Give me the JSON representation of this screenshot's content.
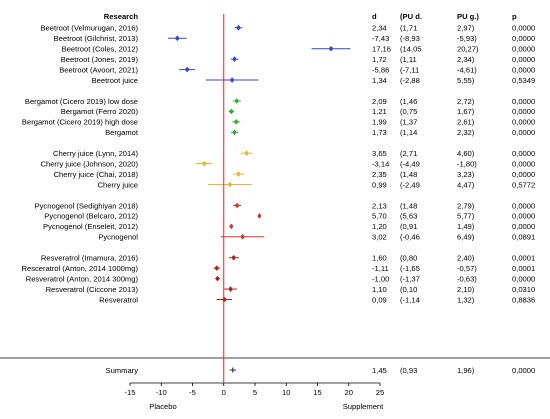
{
  "chart_data": {
    "type": "forest",
    "columns": {
      "study": "Research",
      "d": "d",
      "ci_low": "(PU d.",
      "ci_high": "PU g.)",
      "p": "p"
    },
    "xlim": [
      -15,
      25
    ],
    "xticks": [
      "-15",
      "-10",
      "-5",
      "0",
      "5",
      "10",
      "15",
      "20",
      "25"
    ],
    "left_label": "Placebo",
    "right_label": "Supplement",
    "rows": [
      {
        "label": "Beetroot (Velmurugan, 2016)",
        "d": "2,34",
        "lo": "(1,71",
        "hi": "2,97)",
        "p": "0,0000",
        "v": 2.34,
        "l": 1.71,
        "h": 2.97,
        "color": "#3344cc"
      },
      {
        "label": "Beetroot (Gilchrist, 2013)",
        "d": "-7,43",
        "lo": "(-8,93",
        "hi": "-5,93)",
        "p": "0,0000",
        "v": -7.43,
        "l": -8.93,
        "h": -5.93,
        "color": "#3344cc"
      },
      {
        "label": "Beetroot (Coles, 2012)",
        "d": "17,16",
        "lo": "(14,05",
        "hi": "20,27)",
        "p": "0,0000",
        "v": 17.16,
        "l": 14.05,
        "h": 20.27,
        "color": "#3344cc"
      },
      {
        "label": "Beetroot (Jones, 2019)",
        "d": "1,72",
        "lo": "(1,11",
        "hi": "2,34)",
        "p": "0,0000",
        "v": 1.72,
        "l": 1.11,
        "h": 2.34,
        "color": "#3344cc"
      },
      {
        "label": "Beetroot (Avoort, 2021)",
        "d": "-5,86",
        "lo": "(-7,11",
        "hi": "-4,61)",
        "p": "0,0000",
        "v": -5.86,
        "l": -7.11,
        "h": -4.61,
        "color": "#3344cc"
      },
      {
        "label": "Beetroot juice",
        "d": "1,34",
        "lo": "(-2,88",
        "hi": "5,55)",
        "p": "0,5349",
        "v": 1.34,
        "l": -2.88,
        "h": 5.55,
        "color": "#3344cc"
      },
      {
        "gap": true
      },
      {
        "label": "Bergamot (Cicero 2019) low dose",
        "d": "2,09",
        "lo": "(1,46",
        "hi": "2,72)",
        "p": "0,0000",
        "v": 2.09,
        "l": 1.46,
        "h": 2.72,
        "color": "#33aa33"
      },
      {
        "label": "Bergamot (Ferro 2020)",
        "d": "1,21",
        "lo": "(0,75",
        "hi": "1,67)",
        "p": "0,0000",
        "v": 1.21,
        "l": 0.75,
        "h": 1.67,
        "color": "#33aa33"
      },
      {
        "label": "Bergamot (Cicero 2019) high dose",
        "d": "1,99",
        "lo": "(1,37",
        "hi": "2,61)",
        "p": "0,0000",
        "v": 1.99,
        "l": 1.37,
        "h": 2.61,
        "color": "#33aa33"
      },
      {
        "label": "Bergamot",
        "d": "1,73",
        "lo": "(1,14",
        "hi": "2,32)",
        "p": "0,0000",
        "v": 1.73,
        "l": 1.14,
        "h": 2.32,
        "color": "#33aa33"
      },
      {
        "gap": true
      },
      {
        "label": "Cherry juice (Lynn, 2014)",
        "d": "3,65",
        "lo": "(2,71",
        "hi": "4,60)",
        "p": "0,0000",
        "v": 3.65,
        "l": 2.71,
        "h": 4.6,
        "color": "#f0b030"
      },
      {
        "label": "Cherry juice (Johnson, 2020)",
        "d": "-3,14",
        "lo": "(-4,49",
        "hi": "-1,80)",
        "p": "0,0000",
        "v": -3.14,
        "l": -4.49,
        "h": -1.8,
        "color": "#f0b030"
      },
      {
        "label": "Cherry juice (Chai, 2018)",
        "d": "2,35",
        "lo": "(1,48",
        "hi": "3,23)",
        "p": "0,0000",
        "v": 2.35,
        "l": 1.48,
        "h": 3.23,
        "color": "#f0b030"
      },
      {
        "label": "Cherry juice",
        "d": "0,99",
        "lo": "(-2,49",
        "hi": "4,47)",
        "p": "0,5772",
        "v": 0.99,
        "l": -2.49,
        "h": 4.47,
        "color": "#f0b030"
      },
      {
        "gap": true
      },
      {
        "label": "Pycnogenol (Sedighiyan 2018)",
        "d": "2,13",
        "lo": "(1,48",
        "hi": "2,79)",
        "p": "0,0000",
        "v": 2.13,
        "l": 1.48,
        "h": 2.79,
        "color": "#dd3333"
      },
      {
        "label": "Pycnogenol (Belcaro, 2012)",
        "d": "5,70",
        "lo": "(5,63",
        "hi": "5,77)",
        "p": "0,0000",
        "v": 5.7,
        "l": 5.63,
        "h": 5.77,
        "color": "#dd3333"
      },
      {
        "label": "Pycnogenol (Enseleit, 2012)",
        "d": "1,20",
        "lo": "(0,91",
        "hi": "1,49)",
        "p": "0,0000",
        "v": 1.2,
        "l": 0.91,
        "h": 1.49,
        "color": "#dd3333"
      },
      {
        "label": "Pycnogenol",
        "d": "3,02",
        "lo": "(-0,46",
        "hi": "6,49)",
        "p": "0,0891",
        "v": 3.02,
        "l": -0.46,
        "h": 6.49,
        "color": "#dd3333"
      },
      {
        "gap": true
      },
      {
        "label": "Resveratrol (Imamura, 2016)",
        "d": "1,60",
        "lo": "(0,80",
        "hi": "2,40)",
        "p": "0,0001",
        "v": 1.6,
        "l": 0.8,
        "h": 2.4,
        "color": "#aa2222"
      },
      {
        "label": "Resceratrol (Anton, 2014 1000mg)",
        "d": "-1,11",
        "lo": "(-1,65",
        "hi": "-0,57)",
        "p": "0,0001",
        "v": -1.11,
        "l": -1.65,
        "h": -0.57,
        "color": "#aa2222"
      },
      {
        "label": "Resveratrol (Anton, 2014 300mg)",
        "d": "-1,00",
        "lo": "(-1,37",
        "hi": "-0,63)",
        "p": "0,0000",
        "v": -1.0,
        "l": -1.37,
        "h": -0.63,
        "color": "#aa2222"
      },
      {
        "label": "Resveratrol (Ciccone 2013)",
        "d": "1,10",
        "lo": "(0,10",
        "hi": "2,10)",
        "p": "0,0310",
        "v": 1.1,
        "l": 0.1,
        "h": 2.1,
        "color": "#aa2222"
      },
      {
        "label": "Resveratrol",
        "d": "0,09",
        "lo": "(-1,14",
        "hi": "1,32)",
        "p": "0,8836",
        "v": 0.09,
        "l": -1.14,
        "h": 1.32,
        "color": "#aa2222"
      }
    ],
    "summary": {
      "label": "Summary",
      "d": "1,45",
      "lo": "(0,93",
      "hi": "1,96)",
      "p": "0,0000",
      "v": 1.45,
      "l": 0.93,
      "h": 1.96,
      "color": "#333333"
    },
    "reference_line_color": "#ee2222"
  }
}
